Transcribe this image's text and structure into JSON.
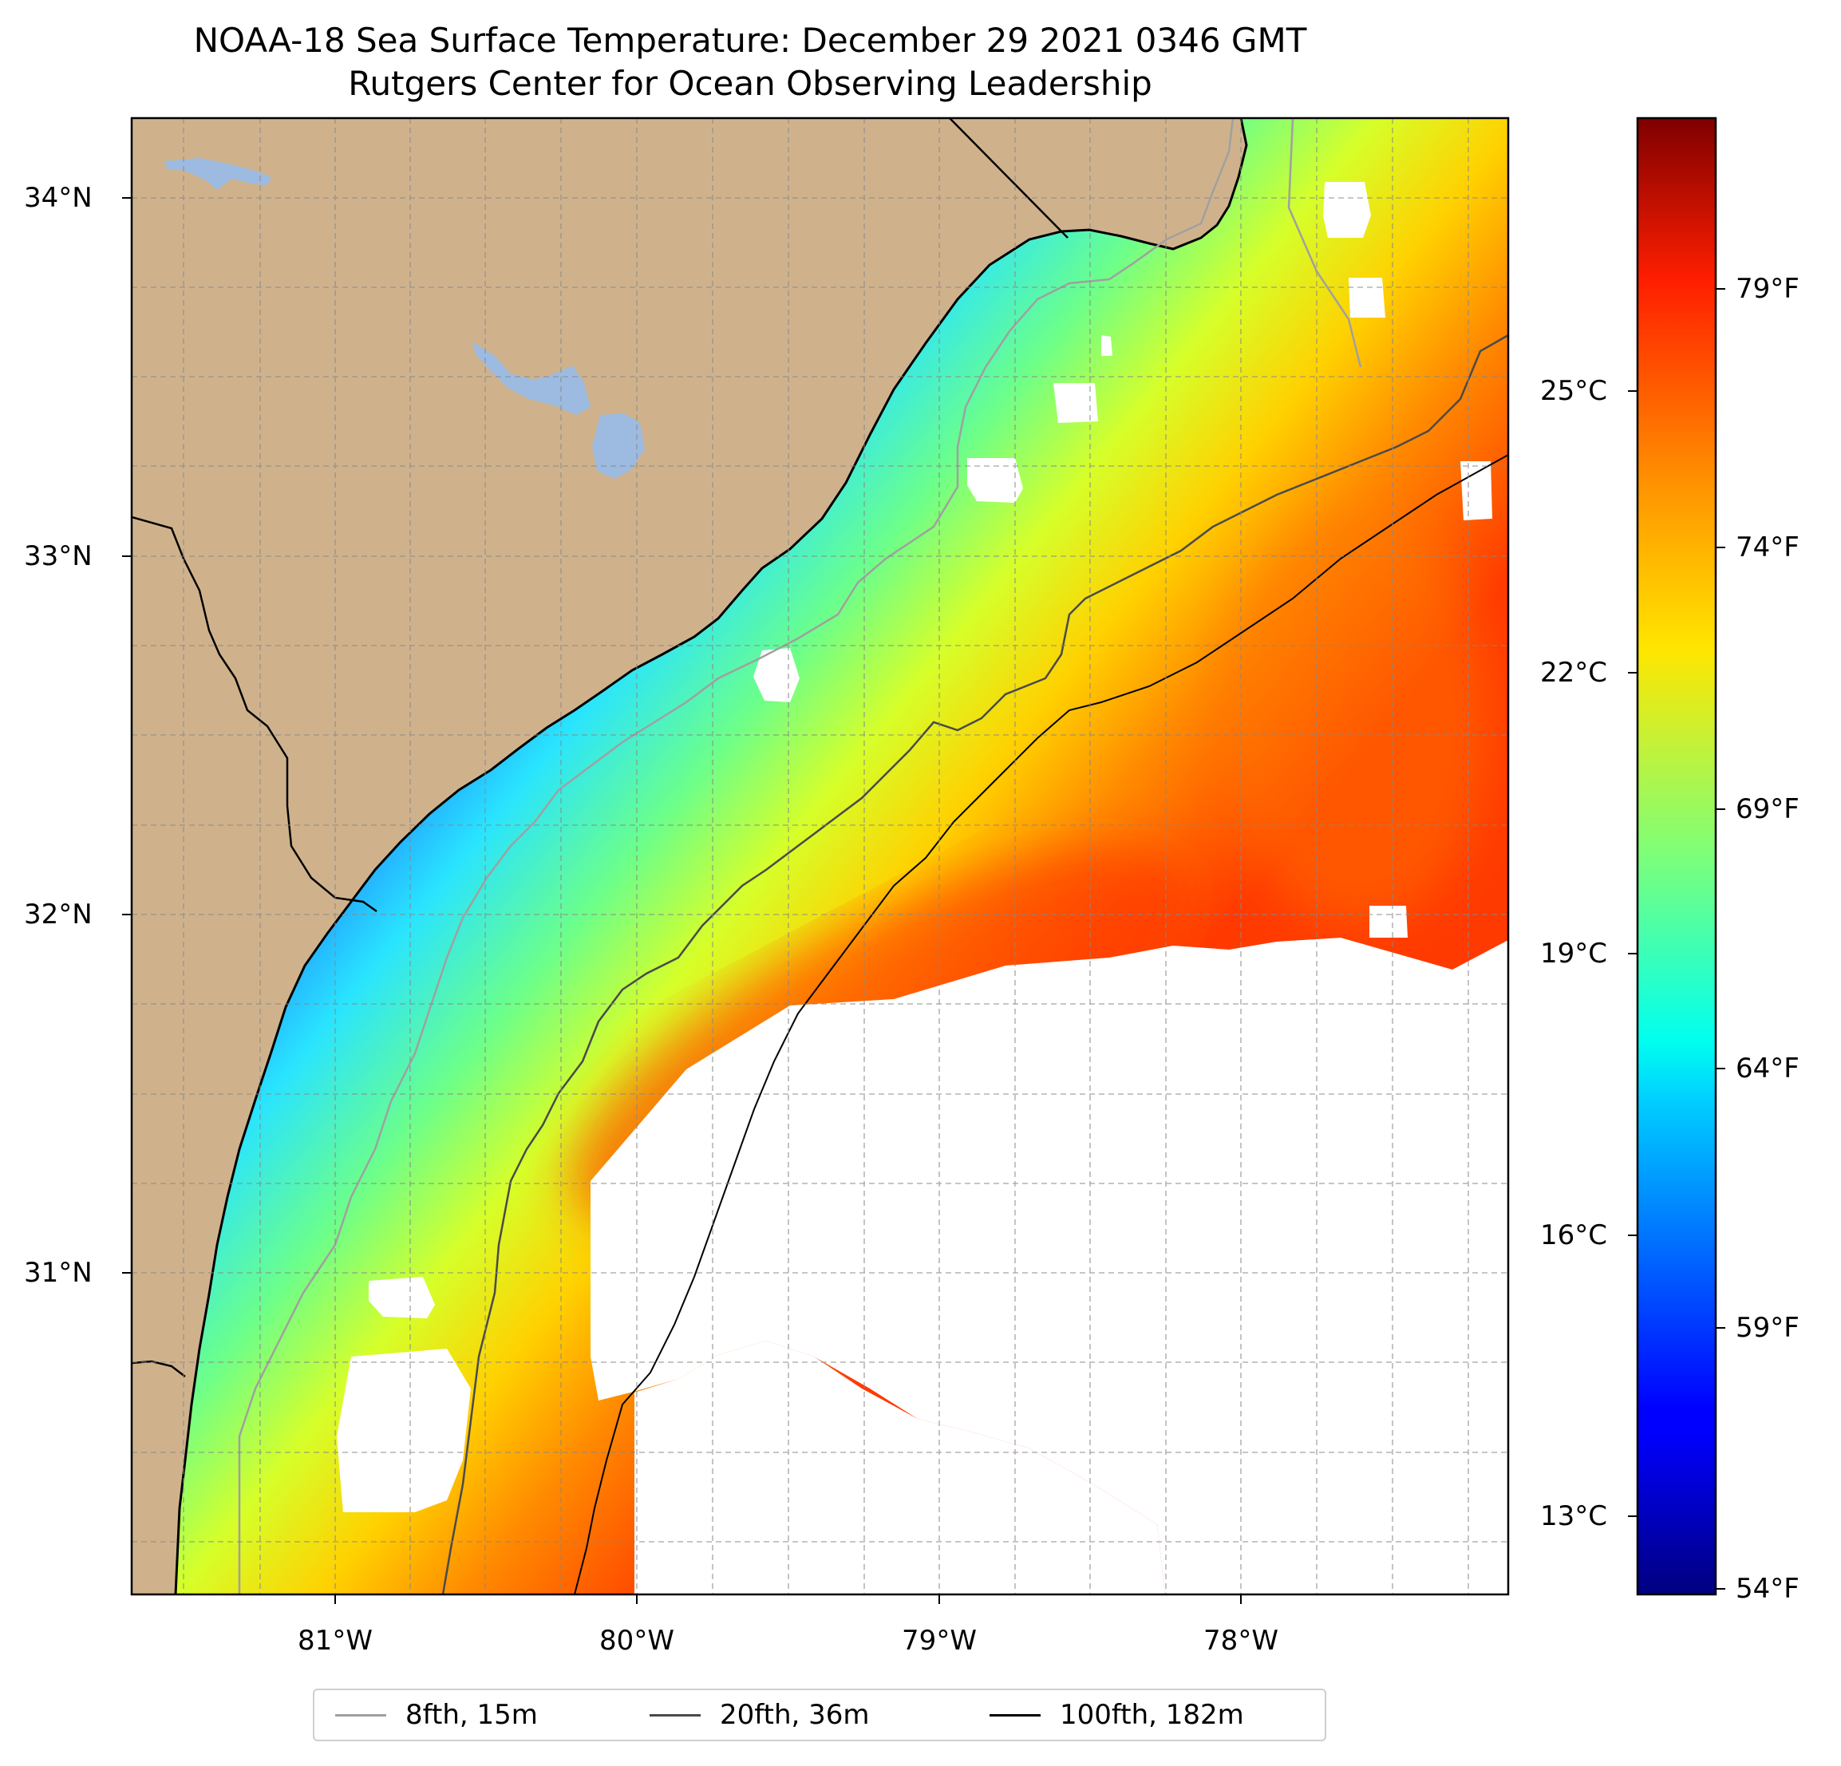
{
  "title": {
    "line1": "NOAA-18 Sea Surface Temperature: December 29 2021 0346 GMT",
    "line2": "Rutgers Center for Ocean Observing Leadership"
  },
  "axes": {
    "x_ticks": [
      "81°W",
      "80°W",
      "79°W",
      "78°W"
    ],
    "y_ticks": [
      "34°N",
      "33°N",
      "32°N",
      "31°N"
    ]
  },
  "colorbar": {
    "celsius_ticks": [
      "25°C",
      "22°C",
      "19°C",
      "16°C",
      "13°C"
    ],
    "fahrenheit_ticks": [
      "79°F",
      "74°F",
      "69°F",
      "64°F",
      "59°F",
      "54°F"
    ]
  },
  "legend": {
    "items": [
      {
        "label": "8fth, 15m",
        "color": "#a0a0a0"
      },
      {
        "label": "20fth, 36m",
        "color": "#4a4a4a"
      },
      {
        "label": "100fth, 182m",
        "color": "#000000"
      }
    ]
  },
  "colors": {
    "land": "#cfb28c",
    "water_body": "#9dbbe0",
    "cloud_mask": "#ffffff"
  }
}
